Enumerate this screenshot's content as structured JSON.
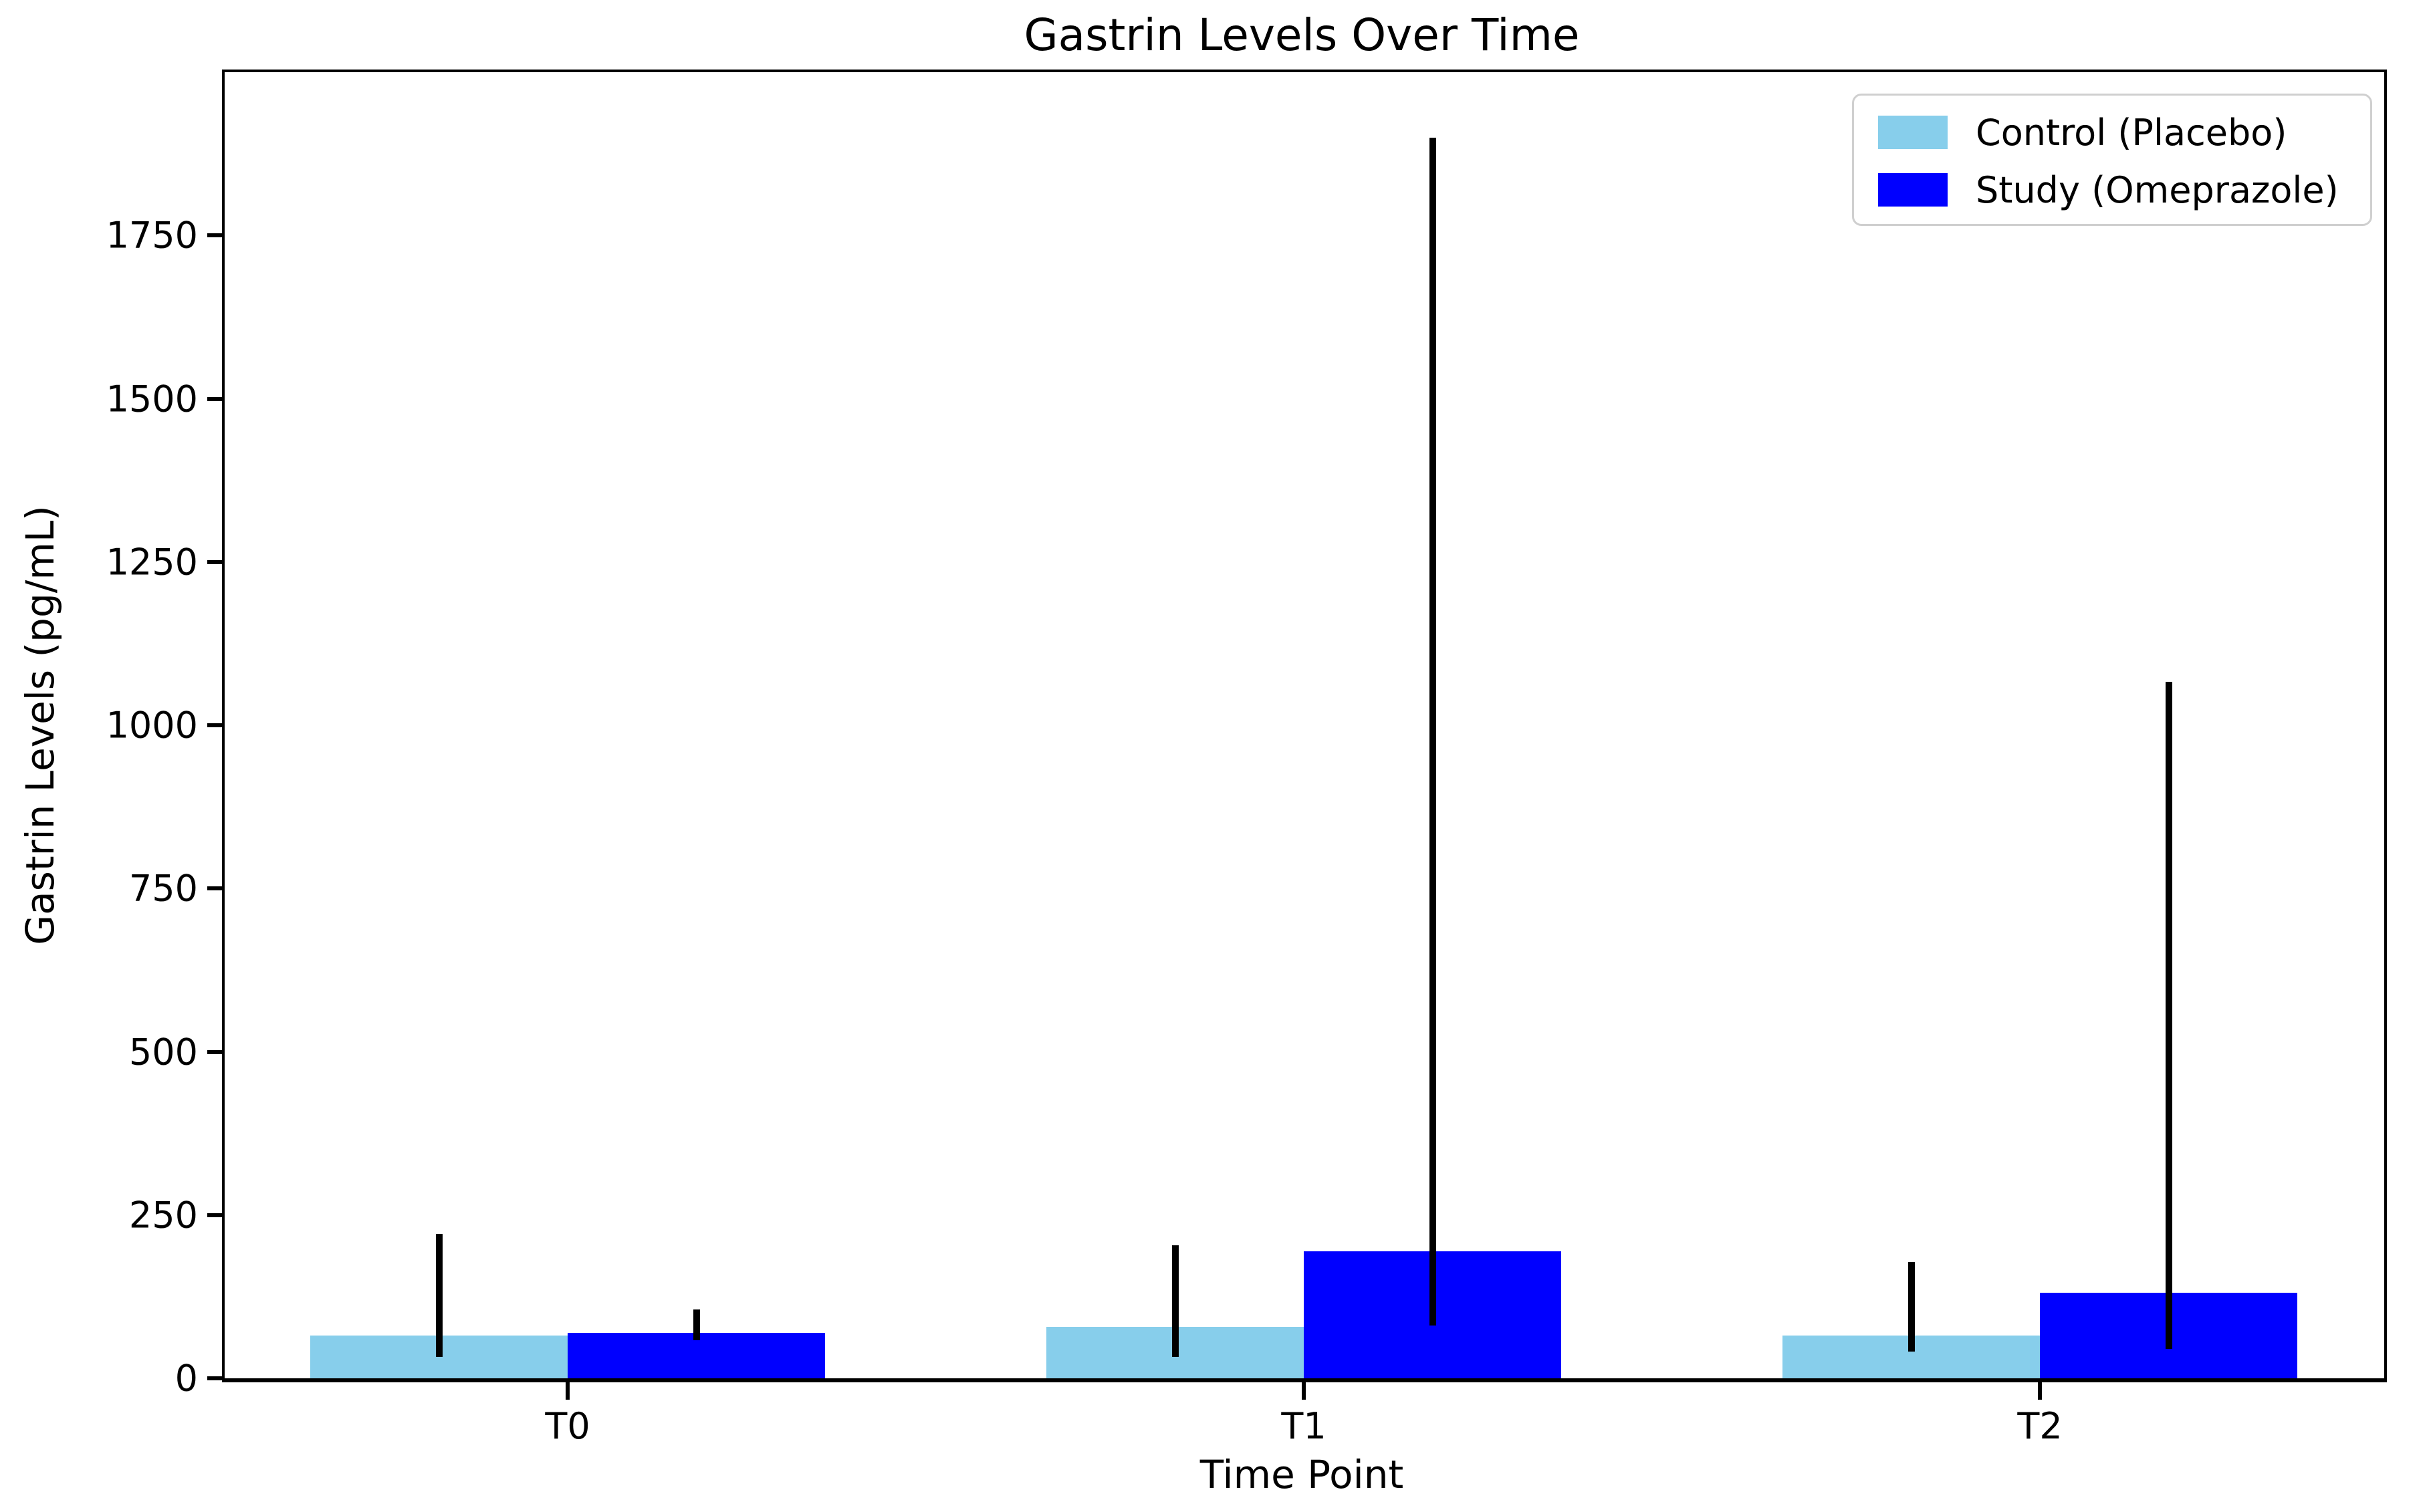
{
  "figure": {
    "title": "Gastrin Levels Over Time",
    "background_color": "#ffffff"
  },
  "axes": {
    "xlabel": "Time Point",
    "ylabel": "Gastrin Levels (pg/mL)"
  },
  "legend": {
    "position": "upper right",
    "entries": [
      "Control (Placebo)",
      "Study (Omeprazole)"
    ]
  },
  "chart_data": {
    "type": "bar",
    "title": "Gastrin Levels Over Time",
    "xlabel": "Time Point",
    "ylabel": "Gastrin Levels (pg/mL)",
    "categories": [
      "T0",
      "T1",
      "T2"
    ],
    "series": [
      {
        "name": "Control (Placebo)",
        "color": "#87CEEB",
        "values": [
          66,
          79,
          66
        ],
        "whisker_min": [
          33,
          33,
          41
        ],
        "whisker_max": [
          221,
          204,
          178
        ]
      },
      {
        "name": "Study (Omeprazole)",
        "color": "#0000FF",
        "values": [
          70,
          195,
          131
        ],
        "whisker_min": [
          58,
          81,
          45
        ],
        "whisker_max": [
          105,
          1900,
          1067
        ]
      }
    ],
    "error_bars": true,
    "error_bar_color": "#000000",
    "ylim": [
      0,
      2000
    ],
    "yticks": [
      0,
      250,
      500,
      750,
      1000,
      1250,
      1500,
      1750
    ],
    "grid": false,
    "legend_position": "upper right"
  }
}
